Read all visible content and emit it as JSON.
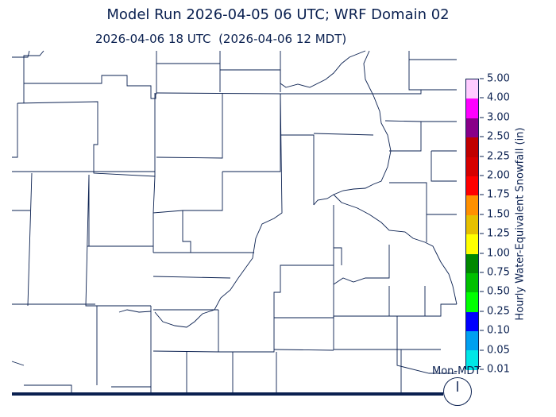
{
  "title": "Model Run 2026-04-05 06 UTC; WRF Domain 02",
  "subtitle": "2026-04-06 18 UTC  (2026-04-06 12 MDT)",
  "colorbar": {
    "label": "Hourly Water-Equivalent Snowfall (in)",
    "ticks": [
      "5.00",
      "4.00",
      "3.00",
      "2.50",
      "2.25",
      "2.00",
      "1.75",
      "1.50",
      "1.25",
      "1.00",
      "0.75",
      "0.50",
      "0.25",
      "0.10",
      "0.05",
      "0.01"
    ],
    "colors": [
      "#ffccff",
      "#ff00ff",
      "#880088",
      "#c00000",
      "#d60000",
      "#ff0000",
      "#ff9000",
      "#e6c000",
      "#ffff00",
      "#008800",
      "#00c000",
      "#00ff00",
      "#0000ff",
      "#00a0f0",
      "#00e6e6"
    ]
  },
  "clock": {
    "label": "Mon-MDT"
  },
  "colors": {
    "boundary": "#0a2050"
  }
}
